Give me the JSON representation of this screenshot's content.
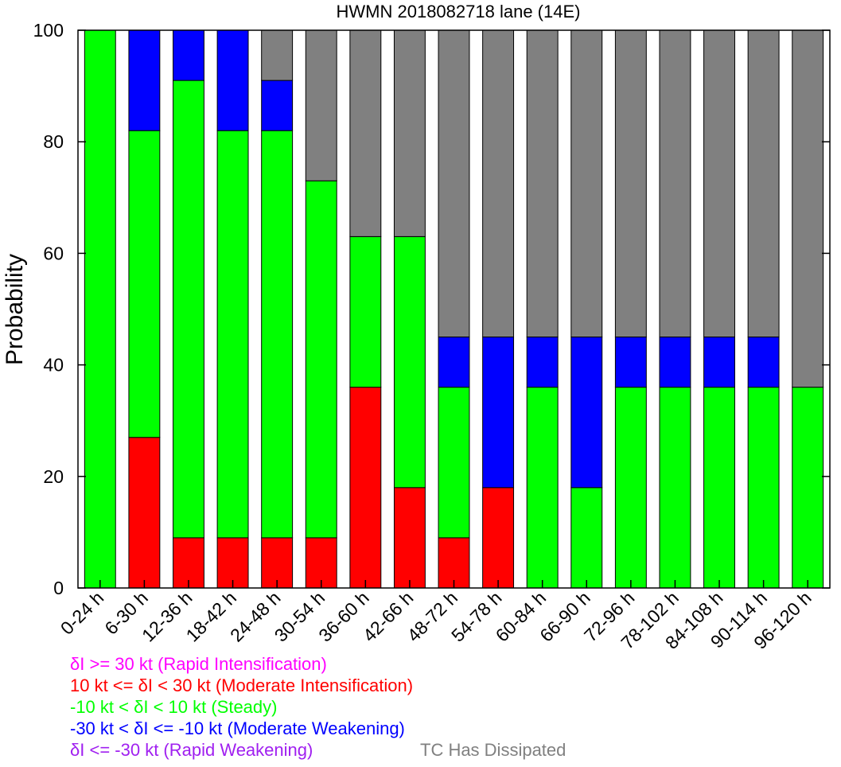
{
  "chart_data": {
    "type": "bar",
    "stacked": true,
    "title": "HWMN 2018082718 lane (14E)",
    "xlabel": "",
    "ylabel": "Probability",
    "ylim": [
      0,
      100
    ],
    "yticks": [
      0,
      20,
      40,
      60,
      80,
      100
    ],
    "grid": false,
    "categories": [
      "0-24 h",
      "6-30 h",
      "12-36 h",
      "18-42 h",
      "24-48 h",
      "30-54 h",
      "36-60 h",
      "42-66 h",
      "48-72 h",
      "54-78 h",
      "60-84 h",
      "66-90 h",
      "72-96 h",
      "78-102 h",
      "84-108 h",
      "90-114 h",
      "96-120 h"
    ],
    "series": [
      {
        "key": "ri",
        "color": "#ff00ff",
        "values": [
          0,
          0,
          0,
          0,
          0,
          0,
          0,
          0,
          0,
          0,
          0,
          0,
          0,
          0,
          0,
          0,
          0
        ]
      },
      {
        "key": "mi",
        "color": "#ff0000",
        "values": [
          0,
          27,
          9,
          9,
          9,
          9,
          36,
          18,
          9,
          18,
          0,
          0,
          0,
          0,
          0,
          0,
          0
        ]
      },
      {
        "key": "steady",
        "color": "#00ff00",
        "values": [
          100,
          55,
          82,
          73,
          73,
          64,
          27,
          45,
          27,
          0,
          36,
          18,
          36,
          36,
          36,
          36,
          36
        ]
      },
      {
        "key": "mw",
        "color": "#0000ff",
        "values": [
          0,
          18,
          9,
          18,
          9,
          0,
          0,
          0,
          9,
          27,
          9,
          27,
          9,
          9,
          9,
          9,
          0
        ]
      },
      {
        "key": "rw",
        "color": "#a020f0",
        "values": [
          0,
          0,
          0,
          0,
          0,
          0,
          0,
          0,
          0,
          0,
          0,
          0,
          0,
          0,
          0,
          0,
          0
        ]
      },
      {
        "key": "dissipated",
        "color": "#808080",
        "values": [
          0,
          0,
          0,
          0,
          9,
          27,
          37,
          37,
          55,
          55,
          55,
          55,
          55,
          55,
          55,
          55,
          64
        ]
      }
    ],
    "legend_position": "bottom-left",
    "legend": [
      {
        "text": "δI >= 30 kt (Rapid Intensification)",
        "color": "#ff00ff"
      },
      {
        "text": "10 kt <= δI < 30 kt (Moderate Intensification)",
        "color": "#ff0000"
      },
      {
        "text": "-10 kt < δI < 10 kt (Steady)",
        "color": "#00ff00"
      },
      {
        "text": "-30 kt < δI <= -10 kt (Moderate Weakening)",
        "color": "#0000ff"
      },
      {
        "text": "δI <= -30 kt (Rapid Weakening)",
        "color": "#a020f0"
      },
      {
        "text": "TC Has Dissipated",
        "color": "#808080"
      }
    ]
  }
}
